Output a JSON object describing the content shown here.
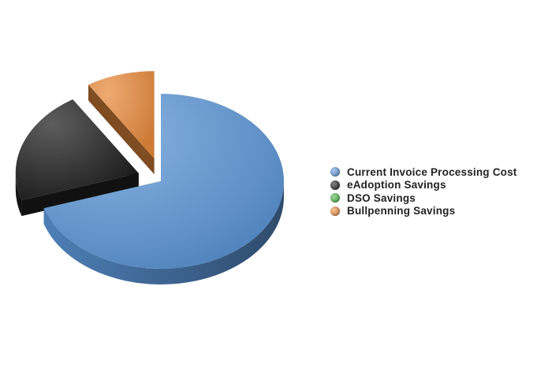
{
  "chart_data": {
    "type": "pie",
    "title": "",
    "style": "3d exploded",
    "legend_position": "right",
    "series": [
      {
        "name": "",
        "slices": [
          {
            "label": "Current Invoice Processing Cost",
            "value": 70,
            "color": "#5b95d6"
          },
          {
            "label": "eAdoption Savings",
            "value": 21,
            "color": "#1e1e1e"
          },
          {
            "label": "DSO Savings",
            "value": 0,
            "color": "#49b244"
          },
          {
            "label": "Bullpenning Savings",
            "value": 9,
            "color": "#e88b3c"
          }
        ]
      }
    ]
  }
}
